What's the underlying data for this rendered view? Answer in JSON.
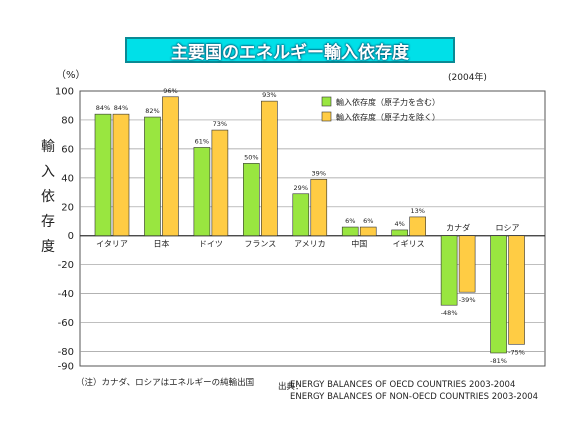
{
  "title": "主要国のエネルギー輸入依存度",
  "unit_label": "（%）",
  "year_label": "(2004年)",
  "y_axis_label": "輸入依存度",
  "note": "（注）カナダ、ロシアはエネルギーの純輸出国",
  "source_label": "出典：",
  "source_lines": [
    "ENERGY BALANCES OF OECD COUNTRIES 2003-2004",
    "ENERGY BALANCES OF NON-OECD COUNTRIES 2003-2004"
  ],
  "colors": {
    "series1": "#99e640",
    "series2": "#ffcc44",
    "title_bg": "#00e0e8",
    "bar_outline": "#333333"
  },
  "chart_data": {
    "type": "bar",
    "categories": [
      "イタリア",
      "日本",
      "ドイツ",
      "フランス",
      "アメリカ",
      "中国",
      "イギリス",
      "カナダ",
      "ロシア"
    ],
    "series": [
      {
        "name": "輸入依存度（原子力を含む）",
        "values": [
          84,
          82,
          61,
          50,
          29,
          6,
          4,
          -48,
          -81
        ],
        "labels": [
          "84%",
          "82%",
          "61%",
          "50%",
          "29%",
          "6%",
          "4%",
          "-48%",
          "-81%"
        ]
      },
      {
        "name": "輸入依存度（原子力を除く）",
        "values": [
          84,
          96,
          73,
          93,
          39,
          6,
          13,
          -39,
          -75
        ],
        "labels": [
          "84%",
          "96%",
          "73%",
          "93%",
          "39%",
          "6%",
          "13%",
          "-39%",
          "-75%"
        ]
      }
    ],
    "ylim": [
      -90,
      100
    ],
    "yticks": [
      100,
      80,
      60,
      40,
      20,
      0,
      -20,
      -40,
      -60,
      -80,
      -90
    ],
    "grid": true,
    "legend_position": "top-right"
  }
}
